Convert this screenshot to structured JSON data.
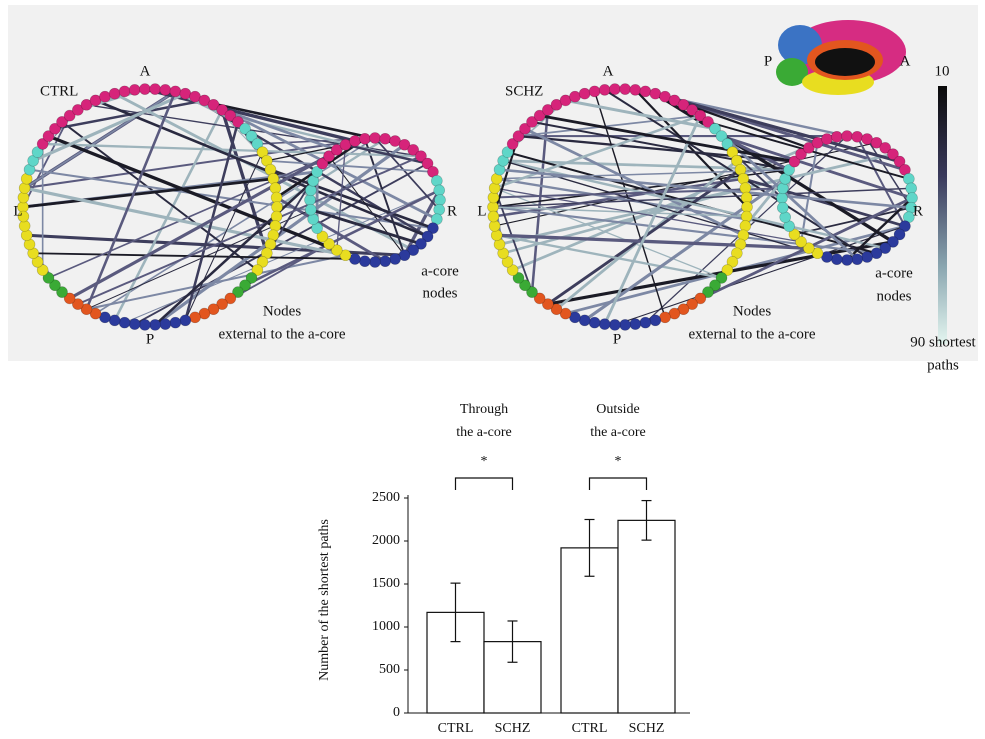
{
  "network_panel": {
    "left": {
      "title": "CTRL",
      "anterior": "A",
      "posterior": "P",
      "left": "L",
      "right": "R",
      "core_label": [
        "a-core",
        "nodes"
      ],
      "external_label": [
        "Nodes",
        "external to the a-core"
      ]
    },
    "right": {
      "title": "SCHZ",
      "anterior": "A",
      "posterior": "P",
      "left": "L",
      "right": "R",
      "core_label": [
        "a-core",
        "nodes"
      ],
      "external_label": [
        "Nodes",
        "external to the a-core"
      ]
    },
    "brain": {
      "posterior": "P",
      "anterior": "A"
    },
    "colorbar": {
      "top_label": "10",
      "bottom_label": [
        "90 shortest",
        "paths"
      ]
    }
  },
  "chart_data": {
    "type": "bar",
    "y_label": "Number of the shortest paths",
    "categories": [
      "CTRL",
      "SCHZ",
      "CTRL",
      "SCHZ"
    ],
    "values": [
      1170,
      830,
      1920,
      2240
    ],
    "errors": [
      340,
      240,
      330,
      230
    ],
    "groups": [
      {
        "label": [
          "Through",
          "the a-core"
        ],
        "significance": "*"
      },
      {
        "label": [
          "Outside",
          "the a-core"
        ],
        "significance": "*"
      }
    ],
    "color": "#ffffff",
    "ylim": [
      0,
      2500
    ],
    "yticks": [
      0,
      500,
      1000,
      1500,
      2000,
      2500
    ]
  }
}
